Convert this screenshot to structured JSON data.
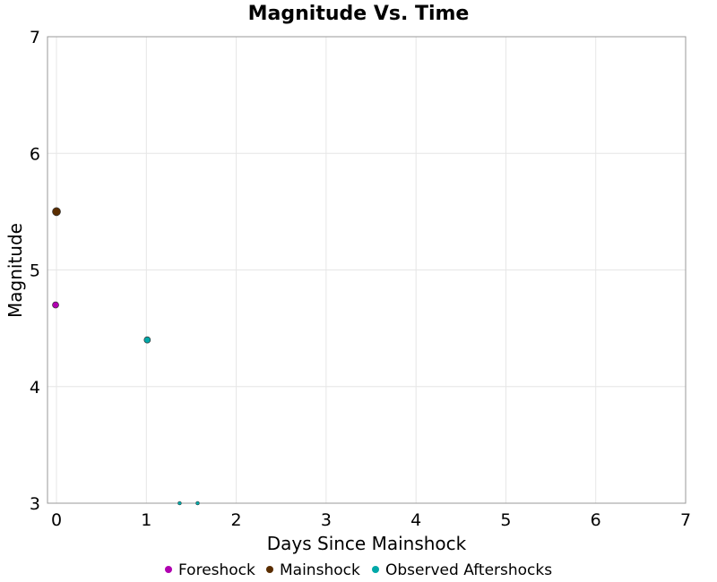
{
  "chart_data": {
    "type": "scatter",
    "title": "Magnitude Vs. Time",
    "xlabel": "Days Since Mainshock",
    "ylabel": "Magnitude",
    "xlim": [
      -0.1,
      7
    ],
    "ylim": [
      3,
      7
    ],
    "xticks": [
      "0",
      "1",
      "2",
      "3",
      "4",
      "5",
      "6",
      "7"
    ],
    "yticks": [
      "3",
      "4",
      "5",
      "6",
      "7"
    ],
    "grid": true,
    "legend_position": "bottom",
    "series": [
      {
        "name": "Foreshock",
        "color": "#b000b0",
        "points": [
          {
            "x": -0.01,
            "y": 4.7
          }
        ]
      },
      {
        "name": "Mainshock",
        "color": "#5a2d00",
        "points": [
          {
            "x": 0.0,
            "y": 5.5
          }
        ]
      },
      {
        "name": "Observed Aftershocks",
        "color": "#00a8a8",
        "points": [
          {
            "x": 1.01,
            "y": 4.4
          },
          {
            "x": 1.37,
            "y": 3.0
          },
          {
            "x": 1.57,
            "y": 3.0
          }
        ]
      }
    ]
  }
}
